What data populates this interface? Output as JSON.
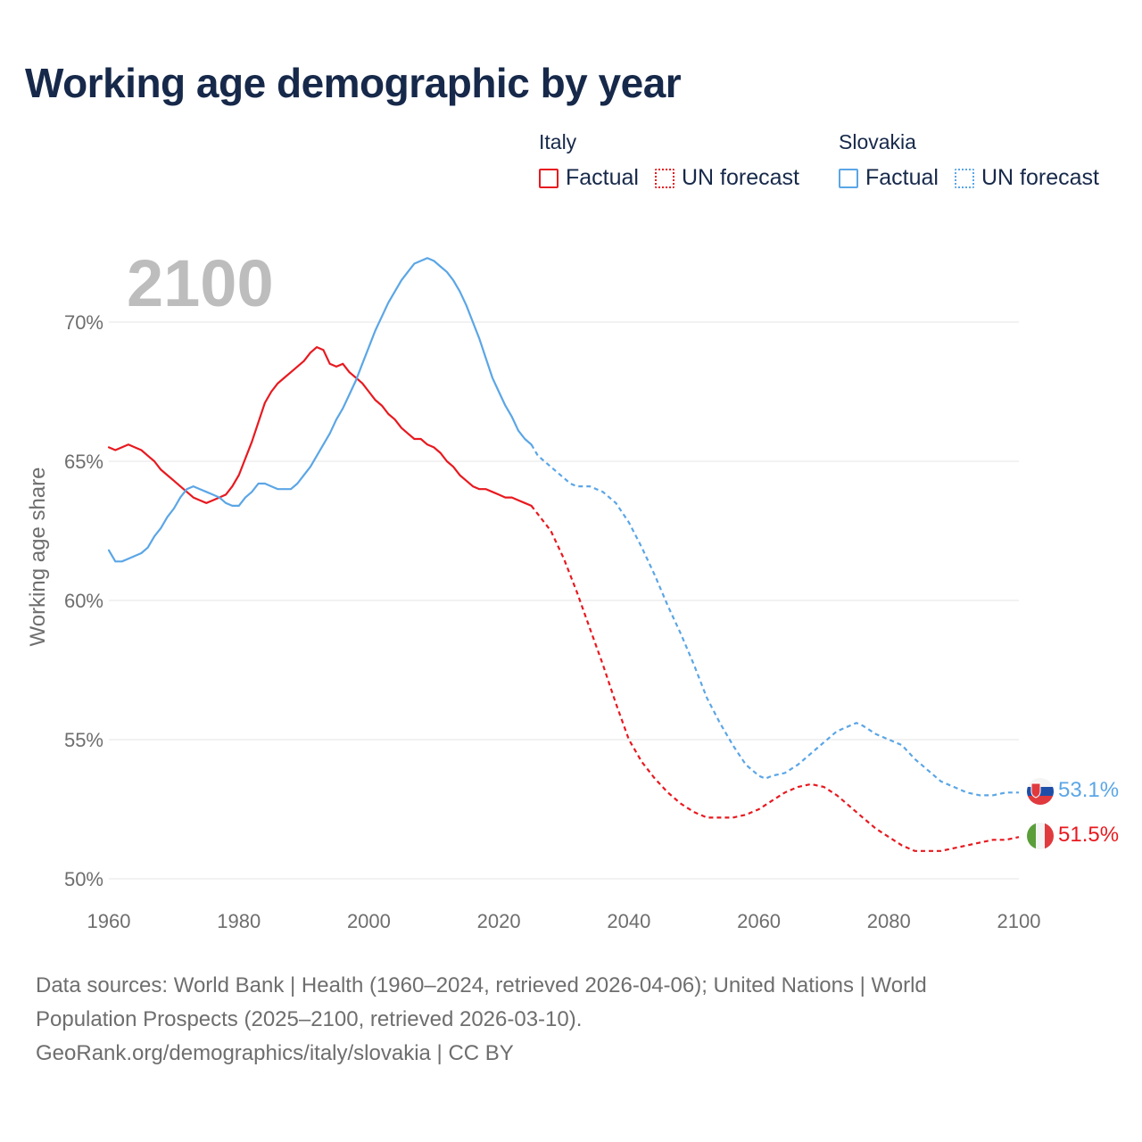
{
  "title": "Working age demographic by year",
  "legend": {
    "groups": [
      {
        "country": "Italy",
        "items": [
          {
            "label": "Factual",
            "style": "solid",
            "color": "#e8191f"
          },
          {
            "label": "UN forecast",
            "style": "dotted",
            "color": "#e8191f"
          }
        ]
      },
      {
        "country": "Slovakia",
        "items": [
          {
            "label": "Factual",
            "style": "solid",
            "color": "#5ba6e6"
          },
          {
            "label": "UN forecast",
            "style": "dotted",
            "color": "#5ba6e6"
          }
        ]
      }
    ]
  },
  "chart_data": {
    "type": "line",
    "title": "Working age demographic by year",
    "year_label": "2100",
    "xlabel": "",
    "ylabel": "Working age share",
    "xlim": [
      1960,
      2100
    ],
    "ylim": [
      49.5,
      73
    ],
    "x_ticks": [
      1960,
      1980,
      2000,
      2020,
      2040,
      2060,
      2080,
      2100
    ],
    "y_ticks": [
      50,
      55,
      60,
      65,
      70
    ],
    "y_tick_labels": [
      "50%",
      "55%",
      "60%",
      "65%",
      "70%"
    ],
    "factual_end_year": 2025,
    "series": [
      {
        "name": "Italy",
        "color": "#e8191f",
        "end_label": "51.5%",
        "end_flag": "italy-flag",
        "points": [
          [
            1960,
            65.5
          ],
          [
            1961,
            65.4
          ],
          [
            1962,
            65.5
          ],
          [
            1963,
            65.6
          ],
          [
            1964,
            65.5
          ],
          [
            1965,
            65.4
          ],
          [
            1966,
            65.2
          ],
          [
            1967,
            65.0
          ],
          [
            1968,
            64.7
          ],
          [
            1969,
            64.5
          ],
          [
            1970,
            64.3
          ],
          [
            1971,
            64.1
          ],
          [
            1972,
            63.9
          ],
          [
            1973,
            63.7
          ],
          [
            1974,
            63.6
          ],
          [
            1975,
            63.5
          ],
          [
            1976,
            63.6
          ],
          [
            1977,
            63.7
          ],
          [
            1978,
            63.8
          ],
          [
            1979,
            64.1
          ],
          [
            1980,
            64.5
          ],
          [
            1981,
            65.1
          ],
          [
            1982,
            65.7
          ],
          [
            1983,
            66.4
          ],
          [
            1984,
            67.1
          ],
          [
            1985,
            67.5
          ],
          [
            1986,
            67.8
          ],
          [
            1987,
            68.0
          ],
          [
            1988,
            68.2
          ],
          [
            1989,
            68.4
          ],
          [
            1990,
            68.6
          ],
          [
            1991,
            68.9
          ],
          [
            1992,
            69.1
          ],
          [
            1993,
            69.0
          ],
          [
            1994,
            68.5
          ],
          [
            1995,
            68.4
          ],
          [
            1996,
            68.5
          ],
          [
            1997,
            68.2
          ],
          [
            1998,
            68.0
          ],
          [
            1999,
            67.8
          ],
          [
            2000,
            67.5
          ],
          [
            2001,
            67.2
          ],
          [
            2002,
            67.0
          ],
          [
            2003,
            66.7
          ],
          [
            2004,
            66.5
          ],
          [
            2005,
            66.2
          ],
          [
            2006,
            66.0
          ],
          [
            2007,
            65.8
          ],
          [
            2008,
            65.8
          ],
          [
            2009,
            65.6
          ],
          [
            2010,
            65.5
          ],
          [
            2011,
            65.3
          ],
          [
            2012,
            65.0
          ],
          [
            2013,
            64.8
          ],
          [
            2014,
            64.5
          ],
          [
            2015,
            64.3
          ],
          [
            2016,
            64.1
          ],
          [
            2017,
            64.0
          ],
          [
            2018,
            64.0
          ],
          [
            2019,
            63.9
          ],
          [
            2020,
            63.8
          ],
          [
            2021,
            63.7
          ],
          [
            2022,
            63.7
          ],
          [
            2023,
            63.6
          ],
          [
            2024,
            63.5
          ],
          [
            2025,
            63.4
          ],
          [
            2026,
            63.1
          ],
          [
            2027,
            62.8
          ],
          [
            2028,
            62.5
          ],
          [
            2029,
            62.0
          ],
          [
            2030,
            61.5
          ],
          [
            2032,
            60.3
          ],
          [
            2034,
            59.0
          ],
          [
            2036,
            57.7
          ],
          [
            2038,
            56.3
          ],
          [
            2040,
            55.0
          ],
          [
            2042,
            54.2
          ],
          [
            2044,
            53.6
          ],
          [
            2046,
            53.1
          ],
          [
            2048,
            52.7
          ],
          [
            2050,
            52.4
          ],
          [
            2052,
            52.2
          ],
          [
            2054,
            52.2
          ],
          [
            2056,
            52.2
          ],
          [
            2058,
            52.3
          ],
          [
            2060,
            52.5
          ],
          [
            2062,
            52.8
          ],
          [
            2064,
            53.1
          ],
          [
            2066,
            53.3
          ],
          [
            2068,
            53.4
          ],
          [
            2070,
            53.3
          ],
          [
            2072,
            53.0
          ],
          [
            2074,
            52.6
          ],
          [
            2076,
            52.2
          ],
          [
            2078,
            51.8
          ],
          [
            2080,
            51.5
          ],
          [
            2082,
            51.2
          ],
          [
            2084,
            51.0
          ],
          [
            2086,
            51.0
          ],
          [
            2088,
            51.0
          ],
          [
            2090,
            51.1
          ],
          [
            2092,
            51.2
          ],
          [
            2094,
            51.3
          ],
          [
            2096,
            51.4
          ],
          [
            2098,
            51.4
          ],
          [
            2100,
            51.5
          ]
        ]
      },
      {
        "name": "Slovakia",
        "color": "#5ba6e6",
        "end_label": "53.1%",
        "end_flag": "slovakia-flag",
        "points": [
          [
            1960,
            61.8
          ],
          [
            1961,
            61.4
          ],
          [
            1962,
            61.4
          ],
          [
            1963,
            61.5
          ],
          [
            1964,
            61.6
          ],
          [
            1965,
            61.7
          ],
          [
            1966,
            61.9
          ],
          [
            1967,
            62.3
          ],
          [
            1968,
            62.6
          ],
          [
            1969,
            63.0
          ],
          [
            1970,
            63.3
          ],
          [
            1971,
            63.7
          ],
          [
            1972,
            64.0
          ],
          [
            1973,
            64.1
          ],
          [
            1974,
            64.0
          ],
          [
            1975,
            63.9
          ],
          [
            1976,
            63.8
          ],
          [
            1977,
            63.7
          ],
          [
            1978,
            63.5
          ],
          [
            1979,
            63.4
          ],
          [
            1980,
            63.4
          ],
          [
            1981,
            63.7
          ],
          [
            1982,
            63.9
          ],
          [
            1983,
            64.2
          ],
          [
            1984,
            64.2
          ],
          [
            1985,
            64.1
          ],
          [
            1986,
            64.0
          ],
          [
            1987,
            64.0
          ],
          [
            1988,
            64.0
          ],
          [
            1989,
            64.2
          ],
          [
            1990,
            64.5
          ],
          [
            1991,
            64.8
          ],
          [
            1992,
            65.2
          ],
          [
            1993,
            65.6
          ],
          [
            1994,
            66.0
          ],
          [
            1995,
            66.5
          ],
          [
            1996,
            66.9
          ],
          [
            1997,
            67.4
          ],
          [
            1998,
            67.9
          ],
          [
            1999,
            68.5
          ],
          [
            2000,
            69.1
          ],
          [
            2001,
            69.7
          ],
          [
            2002,
            70.2
          ],
          [
            2003,
            70.7
          ],
          [
            2004,
            71.1
          ],
          [
            2005,
            71.5
          ],
          [
            2006,
            71.8
          ],
          [
            2007,
            72.1
          ],
          [
            2008,
            72.2
          ],
          [
            2009,
            72.3
          ],
          [
            2010,
            72.2
          ],
          [
            2011,
            72.0
          ],
          [
            2012,
            71.8
          ],
          [
            2013,
            71.5
          ],
          [
            2014,
            71.1
          ],
          [
            2015,
            70.6
          ],
          [
            2016,
            70.0
          ],
          [
            2017,
            69.4
          ],
          [
            2018,
            68.7
          ],
          [
            2019,
            68.0
          ],
          [
            2020,
            67.5
          ],
          [
            2021,
            67.0
          ],
          [
            2022,
            66.6
          ],
          [
            2023,
            66.1
          ],
          [
            2024,
            65.8
          ],
          [
            2025,
            65.6
          ],
          [
            2026,
            65.2
          ],
          [
            2027,
            65.0
          ],
          [
            2028,
            64.8
          ],
          [
            2029,
            64.6
          ],
          [
            2030,
            64.4
          ],
          [
            2031,
            64.2
          ],
          [
            2032,
            64.1
          ],
          [
            2034,
            64.1
          ],
          [
            2035,
            64.0
          ],
          [
            2036,
            63.9
          ],
          [
            2037,
            63.7
          ],
          [
            2038,
            63.5
          ],
          [
            2040,
            62.8
          ],
          [
            2042,
            61.9
          ],
          [
            2044,
            60.9
          ],
          [
            2046,
            59.8
          ],
          [
            2048,
            58.8
          ],
          [
            2050,
            57.7
          ],
          [
            2052,
            56.5
          ],
          [
            2054,
            55.6
          ],
          [
            2056,
            54.8
          ],
          [
            2058,
            54.1
          ],
          [
            2060,
            53.7
          ],
          [
            2061,
            53.6
          ],
          [
            2062,
            53.7
          ],
          [
            2064,
            53.8
          ],
          [
            2066,
            54.1
          ],
          [
            2068,
            54.5
          ],
          [
            2070,
            54.9
          ],
          [
            2072,
            55.3
          ],
          [
            2074,
            55.5
          ],
          [
            2075,
            55.6
          ],
          [
            2076,
            55.5
          ],
          [
            2078,
            55.2
          ],
          [
            2080,
            55.0
          ],
          [
            2082,
            54.8
          ],
          [
            2084,
            54.3
          ],
          [
            2086,
            53.9
          ],
          [
            2088,
            53.5
          ],
          [
            2090,
            53.3
          ],
          [
            2092,
            53.1
          ],
          [
            2094,
            53.0
          ],
          [
            2096,
            53.0
          ],
          [
            2098,
            53.1
          ],
          [
            2100,
            53.1
          ]
        ]
      }
    ]
  },
  "footer": {
    "line1": "Data sources: World Bank | Health (1960–2024, retrieved 2026-04-06); United Nations | World",
    "line2": "Population Prospects (2025–2100, retrieved 2026-03-10).",
    "line3": "GeoRank.org/demographics/italy/slovakia | CC BY"
  }
}
